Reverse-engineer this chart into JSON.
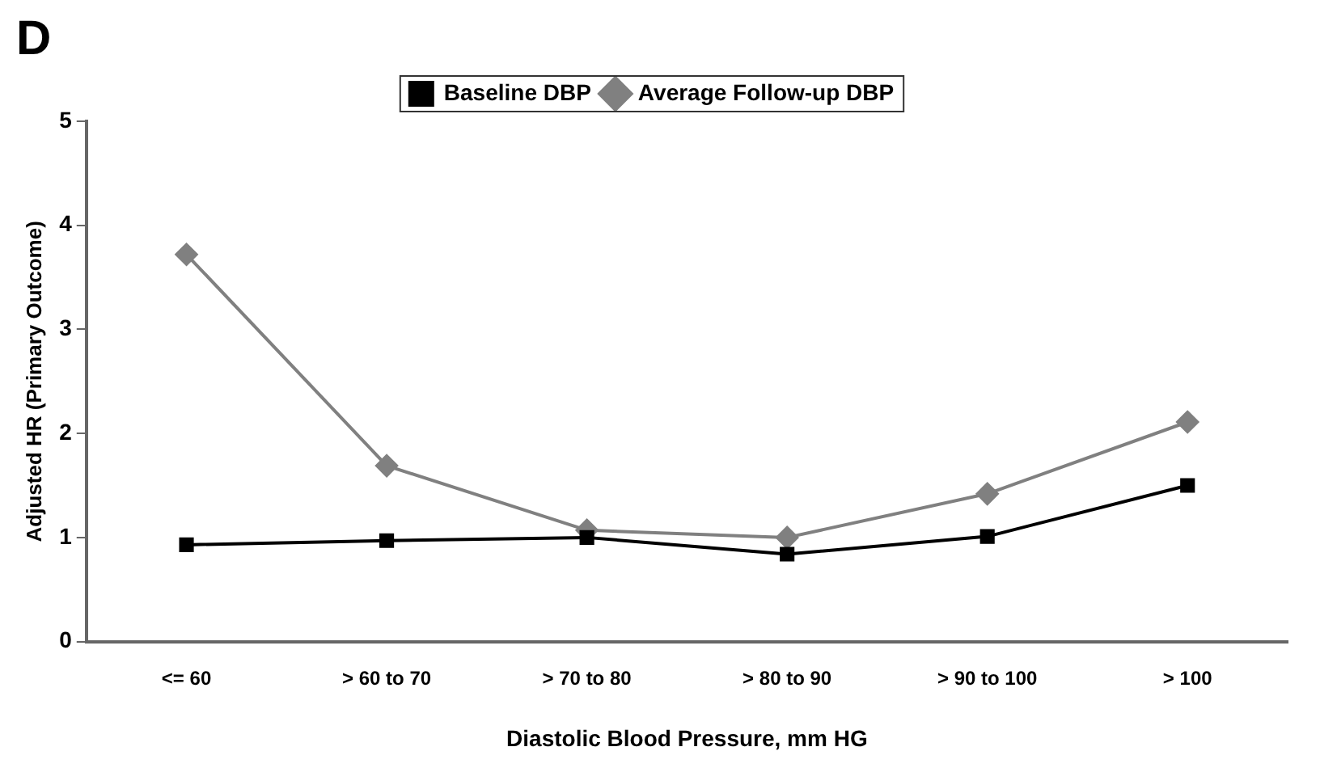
{
  "chart_data": {
    "type": "line",
    "title": "D",
    "xlabel": "Diastolic Blood Pressure, mm HG",
    "ylabel": "Adjusted HR (Primary Outcome)",
    "categories": [
      "<= 60",
      "> 60 to 70",
      "> 70 to 80",
      "> 80 to 90",
      "> 90 to 100",
      "> 100"
    ],
    "series": [
      {
        "name": "Average Follow-up DBP",
        "color": "#808080",
        "marker": "diamond",
        "values": [
          3.72,
          1.69,
          1.07,
          1.0,
          1.42,
          2.11
        ]
      },
      {
        "name": "Baseline DBP",
        "color": "#000000",
        "marker": "square",
        "values": [
          0.93,
          0.97,
          1.0,
          0.84,
          1.01,
          1.5
        ]
      }
    ],
    "ylim": [
      0,
      5
    ],
    "yticks": [
      0,
      1,
      2,
      3,
      4,
      5
    ],
    "grid": false,
    "legend": "top",
    "line_style": "solid"
  }
}
